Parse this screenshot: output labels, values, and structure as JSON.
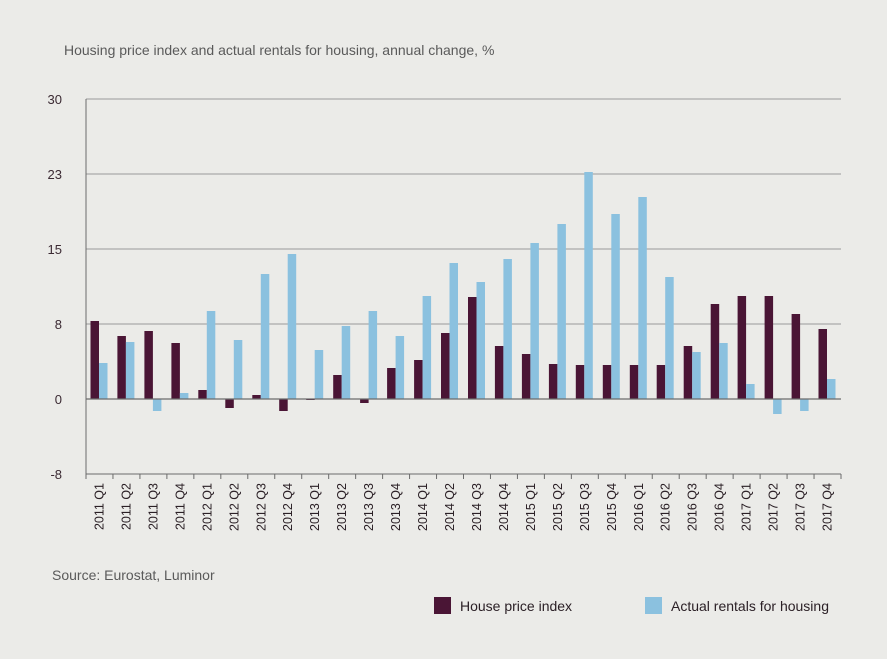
{
  "chart_data": {
    "type": "bar",
    "title": "Housing price index and actual rentals for housing, annual change, %",
    "source": "Source: Eurostat, Luminor",
    "y_ticks": [
      "30",
      "23",
      "15",
      "8",
      "0",
      "-8"
    ],
    "ylim": [
      -7.5,
      30
    ],
    "grid": true,
    "legend_position": "bottom-right",
    "categories": [
      "2011 Q1",
      "2011 Q2",
      "2011 Q3",
      "2011 Q4",
      "2012 Q1",
      "2012 Q2",
      "2012 Q3",
      "2012 Q4",
      "2013 Q1",
      "2013 Q2",
      "2013 Q3",
      "2013 Q4",
      "2014 Q1",
      "2014 Q2",
      "2014 Q3",
      "2014 Q4",
      "2015 Q1",
      "2015 Q2",
      "2015 Q3",
      "2015 Q4",
      "2016 Q1",
      "2016 Q2",
      "2016 Q3",
      "2016 Q4",
      "2017 Q1",
      "2017 Q2",
      "2017 Q3",
      "2017 Q4"
    ],
    "series": [
      {
        "name": "House price index",
        "color": "#4a1535",
        "values": [
          7.8,
          6.3,
          6.8,
          5.6,
          0.9,
          -0.9,
          0.4,
          -1.2,
          -0.1,
          2.4,
          -0.4,
          3.1,
          3.9,
          6.6,
          10.2,
          5.3,
          4.5,
          3.5,
          3.4,
          3.4,
          3.4,
          3.4,
          5.3,
          9.5,
          10.3,
          10.3,
          8.5,
          7.0
        ]
      },
      {
        "name": "Actual rentals for housing",
        "color": "#8bc1df",
        "values": [
          3.6,
          5.7,
          -1.2,
          0.6,
          8.8,
          5.9,
          12.5,
          14.5,
          4.9,
          7.3,
          8.8,
          6.3,
          10.3,
          13.6,
          11.7,
          14.0,
          15.6,
          17.5,
          22.7,
          18.5,
          20.2,
          12.2,
          4.7,
          5.6,
          1.5,
          -1.5,
          -1.2,
          2.0
        ]
      }
    ]
  }
}
